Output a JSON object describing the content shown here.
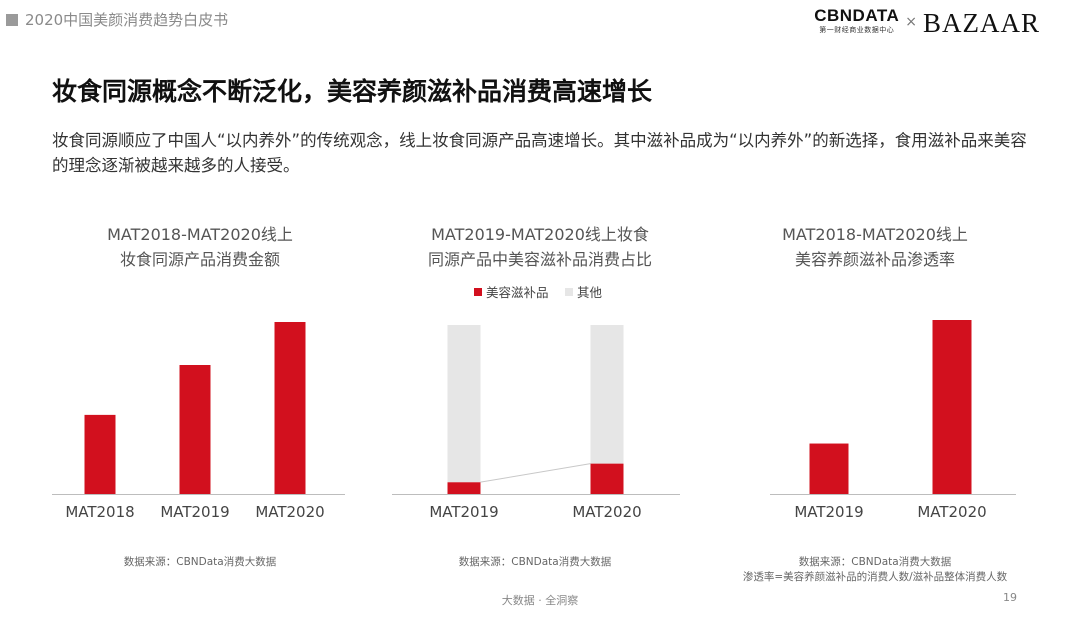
{
  "report_title": "2020中国美颜消费趋势白皮书",
  "brand": {
    "cbndata": "CBNDATA",
    "cbndata_sub": "第一财经商业数据中心",
    "times": "×",
    "partner": "BAZAAR"
  },
  "headline": "妆食同源概念不断泛化，美容养颜滋补品消费高速增长",
  "intro": "妆食同源顺应了中国人“以内养外”的传统观念，线上妆食同源产品高速增长。其中滋补品成为“以内养外”的新选择，食用滋补品来美容的理念逐渐被越来越多的人接受。",
  "colors": {
    "accent": "#d2101e",
    "other": "#e6e6e6",
    "axis": "#bdbdbd"
  },
  "chart_data": [
    {
      "type": "bar",
      "title_lines": [
        "MAT2018-MAT2020线上",
        "妆食同源产品消费金额"
      ],
      "categories": [
        "MAT2018",
        "MAT2019",
        "MAT2020"
      ],
      "values": [
        46,
        75,
        100
      ],
      "ylim": [
        0,
        100
      ],
      "source": [
        "数据来源：CBNData消费大数据"
      ]
    },
    {
      "type": "bar",
      "stacked": true,
      "percent": true,
      "title_lines": [
        "MAT2019-MAT2020线上妆食",
        "同源产品中美容滋补品消费占比"
      ],
      "categories": [
        "MAT2019",
        "MAT2020"
      ],
      "legend": [
        "美容滋补品",
        "其他"
      ],
      "series": [
        {
          "name": "美容滋补品",
          "values": [
            7,
            18
          ]
        },
        {
          "name": "其他",
          "values": [
            93,
            82
          ]
        }
      ],
      "ylim": [
        0,
        100
      ],
      "source": [
        "数据来源：CBNData消费大数据"
      ]
    },
    {
      "type": "bar",
      "title_lines": [
        "MAT2018-MAT2020线上",
        "美容养颜滋补品渗透率"
      ],
      "categories": [
        "MAT2019",
        "MAT2020"
      ],
      "values": [
        29,
        100
      ],
      "ylim": [
        0,
        100
      ],
      "source": [
        "数据来源：CBNData消费大数据",
        "渗透率=美容养颜滋补品的消费人数/滋补品整体消费人数"
      ]
    }
  ],
  "footer": "大数据 · 全洞察",
  "page_number": "19"
}
